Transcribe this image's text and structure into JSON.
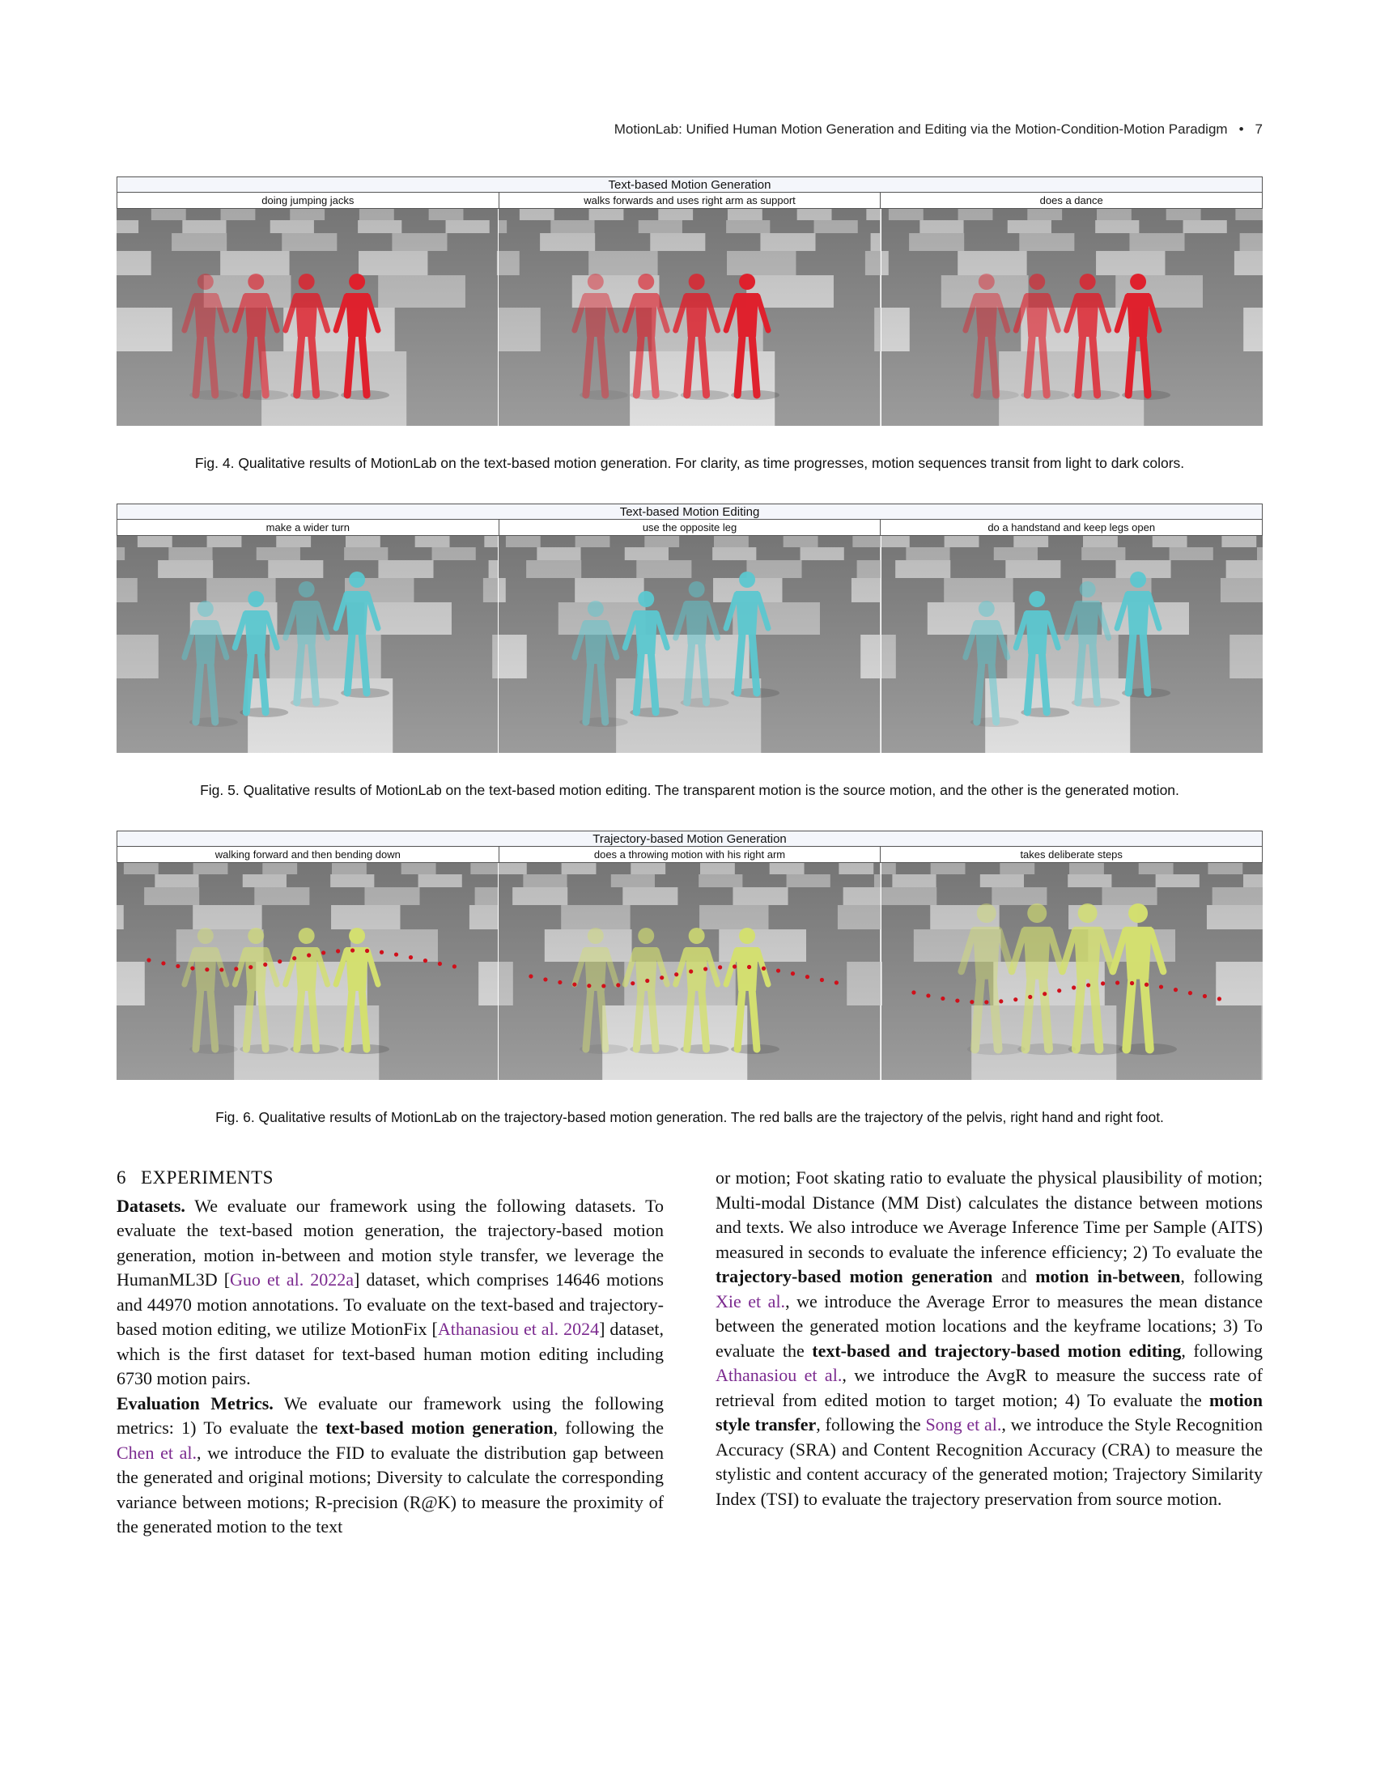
{
  "header": {
    "title": "MotionLab: Unified Human Motion Generation and Editing via the Motion-Condition-Motion Paradigm",
    "bullet": "•",
    "page_number": "7"
  },
  "figures": [
    {
      "title": "Text-based Motion Generation",
      "subtitles": [
        "doing jumping jacks",
        "walks forwards and uses right arm as support",
        "does a dance"
      ],
      "caption": "Fig. 4.  Qualitative results of MotionLab on the text-based motion generation. For clarity, as time progresses, motion sequences transit from light to dark colors.",
      "color": "#e0202c"
    },
    {
      "title": "Text-based Motion Editing",
      "subtitles": [
        "make a wider turn",
        "use the opposite leg",
        "do a handstand and keep legs open"
      ],
      "caption": "Fig. 5.  Qualitative results of MotionLab on the text-based motion editing. The transparent motion is the source motion, and the other is the generated motion.",
      "color": "#5cc8d0"
    },
    {
      "title": "Trajectory-based Motion Generation",
      "subtitles": [
        "walking forward and then bending down",
        "does a throwing motion with his right arm",
        "takes deliberate steps"
      ],
      "caption": "Fig. 6.  Qualitative results of MotionLab on the trajectory-based motion generation. The red balls are the trajectory of the pelvis, right hand and right foot.",
      "color": "#d4e070"
    }
  ],
  "section": {
    "number": "6",
    "title": "EXPERIMENTS"
  },
  "left_column": {
    "datasets_label": "Datasets.",
    "datasets_text_1": " We evaluate our framework using the following datasets. To evaluate the text-based motion generation, the trajectory-based motion generation, motion in-between and motion style transfer, we leverage the HumanML3D [",
    "cite_guo": "Guo et al. 2022a",
    "datasets_text_2": "] dataset, which comprises 14646 motions and 44970 motion annotations. To evaluate on the text-based and trajectory-based motion editing, we utilize MotionFix [",
    "cite_athanasiou_2024": "Athanasiou et al. 2024",
    "datasets_text_3": "] dataset, which is the first dataset for text-based human motion editing including 6730 motion pairs.",
    "metrics_label": "Evaluation Metrics.",
    "metrics_text_1": " We evaluate our framework using the following metrics: 1) To evaluate the ",
    "bold_text_gen": "text-based motion generation",
    "metrics_text_2": ", following the ",
    "cite_chen": "Chen et al.",
    "metrics_text_3": ", we introduce the FID to evaluate the distribution gap between the generated and original motions; Diversity to calculate the corresponding variance between motions; R-precision (R@K) to measure the proximity of the generated motion to the text"
  },
  "right_column": {
    "text_1": "or motion; Foot skating ratio to evaluate the physical plausibility of motion; Multi-modal Distance (MM Dist) calculates the distance between motions and texts. We also introduce we Average Inference Time per Sample (AITS) measured in seconds to evaluate the inference efficiency; 2) To evaluate the ",
    "bold_traj_gen": "trajectory-based motion generation",
    "text_2": " and ",
    "bold_inbetween": "motion in-between",
    "text_3": ", following ",
    "cite_xie": "Xie et al.",
    "text_4": ", we introduce the Average Error to measures the mean distance between the generated motion locations and the keyframe locations; 3) To evaluate the ",
    "bold_editing": "text-based and trajectory-based motion editing",
    "text_5": ", following ",
    "cite_athanasiou": "Athanasiou et al.",
    "text_6": ", we introduce the AvgR to measure the success rate of retrieval from edited motion to target motion; 4) To evaluate the ",
    "bold_style": "motion style transfer",
    "text_7": ", following the ",
    "cite_song": "Song et al.",
    "text_8": ", we introduce the Style Recognition Accuracy (SRA) and Content Recognition Accuracy (CRA) to measure the stylistic and content accuracy of the generated motion; Trajectory Similarity Index (TSI) to evaluate the trajectory preservation from source motion."
  }
}
